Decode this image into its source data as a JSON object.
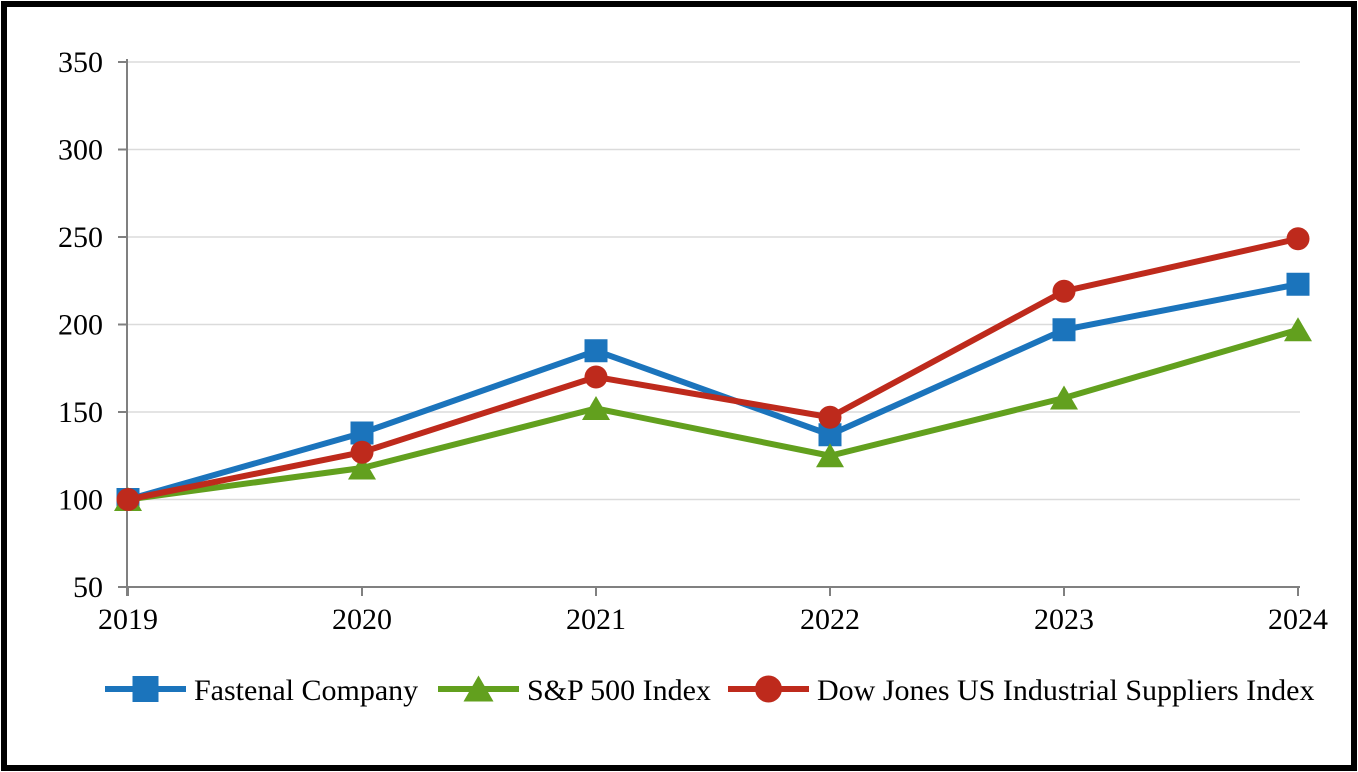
{
  "chart_data": {
    "type": "line",
    "title": "",
    "xlabel": "",
    "ylabel": "",
    "x": [
      "2019",
      "2020",
      "2021",
      "2022",
      "2023",
      "2024"
    ],
    "yticks": [
      50,
      100,
      150,
      200,
      250,
      300,
      350
    ],
    "ylim": [
      50,
      350
    ],
    "grid": "horizontal",
    "legend_position": "bottom",
    "series": [
      {
        "name": "Fastenal Company",
        "marker": "square",
        "color": "#1B74BC",
        "values": [
          100,
          138,
          185,
          137,
          197,
          223
        ]
      },
      {
        "name": "S&P 500 Index",
        "marker": "triangle",
        "color": "#62A01E",
        "values": [
          100,
          118,
          152,
          125,
          158,
          197
        ]
      },
      {
        "name": "Dow Jones US Industrial Suppliers Index",
        "marker": "circle",
        "color": "#BE2A1C",
        "values": [
          100,
          127,
          170,
          147,
          219,
          249
        ]
      }
    ],
    "colors": {
      "axis": "#808080",
      "gridline": "#DBDBDB",
      "text": "#000000",
      "background": "#FFFFFF",
      "frame_border": "#000000"
    }
  }
}
